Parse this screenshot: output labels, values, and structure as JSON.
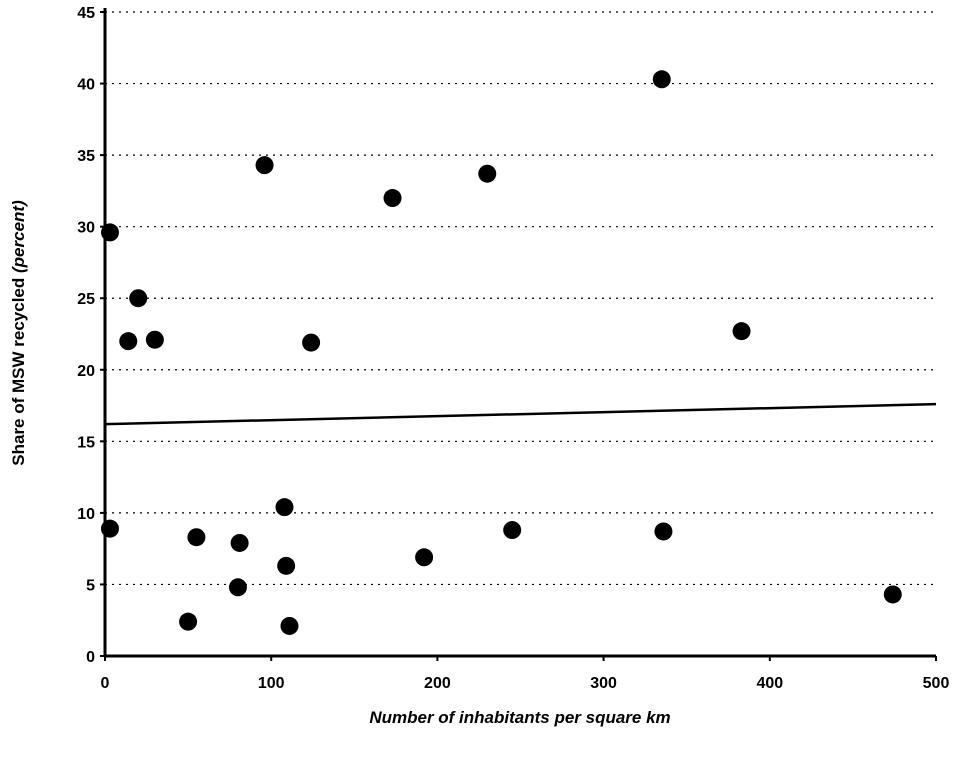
{
  "chart_data": {
    "type": "scatter",
    "title": "",
    "xlabel": "Number of inhabitants per square km",
    "ylabel_main": "Share of MSW recycled ",
    "ylabel_unit": "(percent)",
    "xlim": [
      0,
      500
    ],
    "ylim": [
      0,
      45
    ],
    "x_ticks": [
      0,
      100,
      200,
      300,
      400,
      500
    ],
    "y_ticks": [
      0,
      5,
      10,
      15,
      20,
      25,
      30,
      35,
      40,
      45
    ],
    "grid": "horizontal dotted",
    "marker_color": "#000000",
    "points": [
      {
        "x": 3,
        "y": 29.6
      },
      {
        "x": 3,
        "y": 8.9
      },
      {
        "x": 14,
        "y": 22.0
      },
      {
        "x": 20,
        "y": 25.0
      },
      {
        "x": 30,
        "y": 22.1
      },
      {
        "x": 50,
        "y": 2.4
      },
      {
        "x": 55,
        "y": 8.3
      },
      {
        "x": 80,
        "y": 4.8
      },
      {
        "x": 81,
        "y": 7.9
      },
      {
        "x": 96,
        "y": 34.3
      },
      {
        "x": 108,
        "y": 10.4
      },
      {
        "x": 109,
        "y": 6.3
      },
      {
        "x": 111,
        "y": 2.1
      },
      {
        "x": 124,
        "y": 21.9
      },
      {
        "x": 173,
        "y": 32.0
      },
      {
        "x": 192,
        "y": 6.9
      },
      {
        "x": 230,
        "y": 33.7
      },
      {
        "x": 245,
        "y": 8.8
      },
      {
        "x": 335,
        "y": 40.3
      },
      {
        "x": 336,
        "y": 8.7
      },
      {
        "x": 383,
        "y": 22.7
      },
      {
        "x": 474,
        "y": 4.3
      }
    ],
    "trendline": {
      "x": [
        0,
        500
      ],
      "y": [
        16.2,
        17.6
      ]
    }
  }
}
